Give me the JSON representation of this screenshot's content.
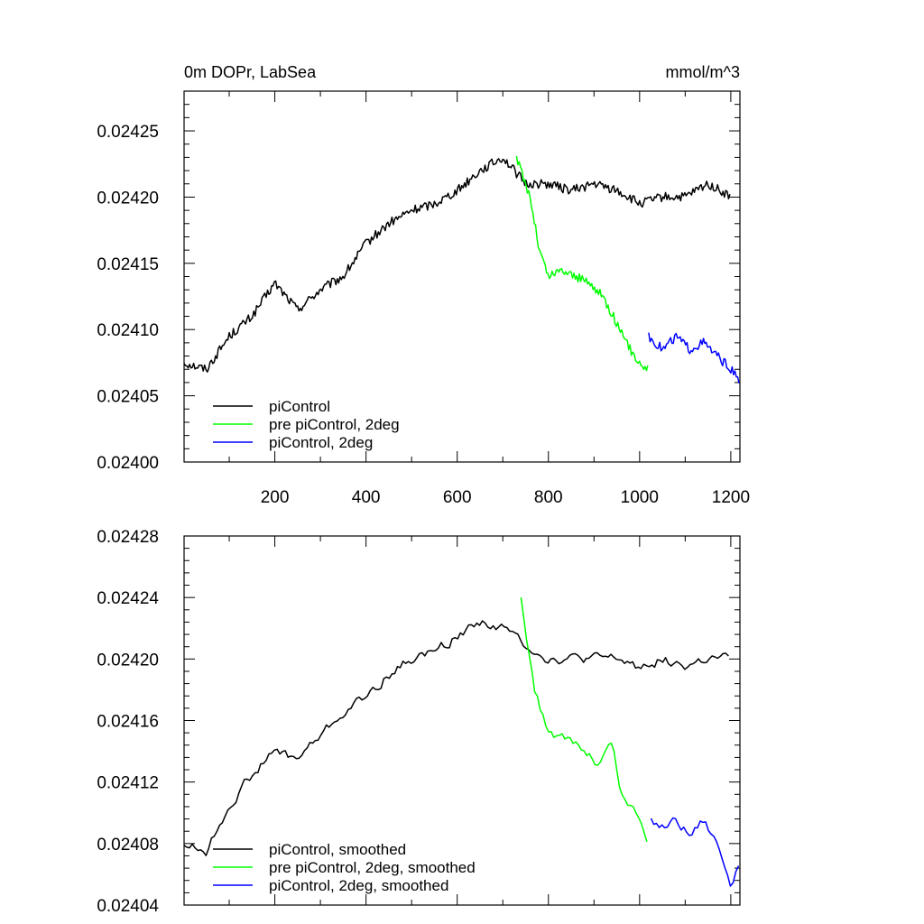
{
  "chart_data": [
    {
      "type": "line",
      "title_left": "0m DOPr, LabSea",
      "title_right": "mmol/m^3",
      "xlim": [
        1,
        1220
      ],
      "ylim": [
        0.024,
        0.02428
      ],
      "x_ticks": [
        200,
        400,
        600,
        800,
        1000,
        1200
      ],
      "x_tick_labels": [
        "200",
        "400",
        "600",
        "800",
        "1000",
        "1200"
      ],
      "y_ticks": [
        0.024,
        0.02405,
        0.0241,
        0.02415,
        0.0242,
        0.02425
      ],
      "y_tick_labels": [
        "0.02400",
        "0.02405",
        "0.02410",
        "0.02415",
        "0.02420",
        "0.02425"
      ],
      "legend_position": "bottom-left",
      "series": [
        {
          "name": "piControl",
          "color": "#000000",
          "x": [
            1,
            50,
            100,
            150,
            200,
            250,
            300,
            350,
            400,
            450,
            500,
            550,
            600,
            650,
            700,
            750,
            800,
            850,
            900,
            950,
            1000,
            1050,
            1100,
            1150,
            1200
          ],
          "values": [
            0.024075,
            0.02407,
            0.024095,
            0.02411,
            0.024135,
            0.024115,
            0.02413,
            0.02414,
            0.024165,
            0.02418,
            0.02419,
            0.024195,
            0.024205,
            0.02422,
            0.02423,
            0.02421,
            0.02421,
            0.024205,
            0.02421,
            0.024205,
            0.024195,
            0.0242,
            0.0242,
            0.02421,
            0.0242
          ]
        },
        {
          "name": "pre piControl, 2deg",
          "color": "#00ff00",
          "x": [
            730,
            760,
            780,
            800,
            830,
            860,
            890,
            920,
            950,
            970,
            1000,
            1020
          ],
          "values": [
            0.02423,
            0.0242,
            0.02416,
            0.02414,
            0.024145,
            0.02414,
            0.024135,
            0.024125,
            0.024105,
            0.02409,
            0.024075,
            0.02407
          ]
        },
        {
          "name": "piControl, 2deg",
          "color": "#0000ff",
          "x": [
            1020,
            1050,
            1080,
            1110,
            1140,
            1170,
            1200,
            1220
          ],
          "values": [
            0.024095,
            0.024085,
            0.024095,
            0.024085,
            0.02409,
            0.02408,
            0.02407,
            0.02406
          ]
        }
      ]
    },
    {
      "type": "line",
      "xlim": [
        1,
        1220
      ],
      "ylim": [
        0.02404,
        0.02428
      ],
      "x_ticks": [
        200,
        400,
        600,
        800,
        1000,
        1200
      ],
      "y_ticks": [
        0.02404,
        0.02408,
        0.02412,
        0.02416,
        0.0242,
        0.02424,
        0.02428
      ],
      "y_tick_labels": [
        "0.02404",
        "0.02408",
        "0.02412",
        "0.02416",
        "0.02420",
        "0.02424",
        "0.02428"
      ],
      "legend_position": "bottom-left",
      "series": [
        {
          "name": "piControl, smoothed",
          "color": "#000000",
          "x": [
            1,
            50,
            100,
            150,
            200,
            250,
            300,
            350,
            400,
            450,
            500,
            550,
            600,
            650,
            700,
            750,
            800,
            850,
            900,
            950,
            1000,
            1050,
            1100,
            1150,
            1200
          ],
          "values": [
            0.02408,
            0.024075,
            0.024105,
            0.024125,
            0.02414,
            0.024135,
            0.02415,
            0.024165,
            0.024175,
            0.02419,
            0.0242,
            0.024205,
            0.024215,
            0.024225,
            0.02422,
            0.02421,
            0.0242,
            0.0242,
            0.0242,
            0.0242,
            0.024195,
            0.0242,
            0.024195,
            0.0242,
            0.0242
          ]
        },
        {
          "name": "pre piControl, 2deg, smoothed",
          "color": "#00ff00",
          "x": [
            740,
            770,
            790,
            820,
            850,
            880,
            910,
            940,
            960,
            990,
            1020
          ],
          "values": [
            0.02424,
            0.02418,
            0.02416,
            0.024148,
            0.024148,
            0.02414,
            0.02413,
            0.024145,
            0.02411,
            0.0241,
            0.02408
          ]
        },
        {
          "name": "piControl, 2deg, smoothed",
          "color": "#0000ff",
          "x": [
            1025,
            1050,
            1080,
            1110,
            1140,
            1170,
            1200,
            1220
          ],
          "values": [
            0.024095,
            0.02409,
            0.024095,
            0.024085,
            0.024095,
            0.02408,
            0.024055,
            0.02407
          ]
        }
      ]
    }
  ]
}
